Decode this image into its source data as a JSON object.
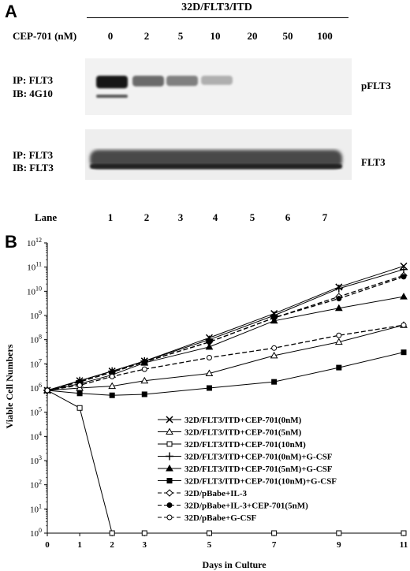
{
  "figure": {
    "panel_a": {
      "letter": "A",
      "header": "32D/FLT3/ITD",
      "conc_label": "CEP-701 (nM)",
      "concentrations": [
        "0",
        "2",
        "5",
        "10",
        "20",
        "50",
        "100"
      ],
      "blot_top": {
        "ip": "IP: FLT3",
        "ib": "IB: 4G10",
        "right_label": "pFLT3",
        "intensities": [
          1.0,
          0.6,
          0.5,
          0.28,
          0,
          0,
          0
        ]
      },
      "blot_bottom": {
        "ip": "IP: FLT3",
        "ib": "IB: FLT3",
        "right_label": "FLT3"
      },
      "lane_label": "Lane",
      "lanes": [
        "1",
        "2",
        "3",
        "4",
        "5",
        "6",
        "7"
      ]
    },
    "panel_b": {
      "letter": "B"
    }
  },
  "chart_data": {
    "type": "line",
    "xlabel": "Days in Culture",
    "ylabel": "Viable Cell Numbers",
    "x_ticks": [
      0,
      1,
      2,
      3,
      5,
      7,
      9,
      11
    ],
    "y_log": true,
    "y_tick_exponents": [
      0,
      1,
      2,
      3,
      4,
      5,
      6,
      7,
      8,
      9,
      10,
      11,
      12
    ],
    "y_tick_base": "10",
    "series": [
      {
        "name": "32D/FLT3/ITD+CEP-701(0nM)",
        "marker": "x",
        "dash": "solid",
        "x": [
          0,
          1,
          2,
          3,
          5,
          7,
          9,
          11
        ],
        "y": [
          800000.0,
          2000000.0,
          5000000.0,
          13000000.0,
          120000000.0,
          1200000000.0,
          15000000000.0,
          110000000000.0
        ]
      },
      {
        "name": "32D/FLT3/ITD+CEP-701(5nM)",
        "marker": "triangle-open",
        "dash": "solid",
        "x": [
          0,
          1,
          2,
          3,
          5,
          7,
          9,
          11
        ],
        "y": [
          800000.0,
          1000000.0,
          1200000.0,
          2000000.0,
          4000000.0,
          22000000.0,
          80000000.0,
          400000000.0
        ]
      },
      {
        "name": "32D/FLT3/ITD+CEP-701(10nM)",
        "marker": "square-open",
        "dash": "solid",
        "x": [
          0,
          1,
          2,
          3,
          5,
          7,
          9,
          11
        ],
        "y": [
          800000.0,
          150000.0,
          1,
          1,
          1,
          1,
          1,
          1
        ]
      },
      {
        "name": "32D/FLT3/ITD+CEP-701(0nM)+G-CSF",
        "marker": "plus",
        "dash": "solid",
        "x": [
          0,
          1,
          2,
          3,
          5,
          7,
          9,
          11
        ],
        "y": [
          800000.0,
          2000000.0,
          5000000.0,
          13000000.0,
          100000000.0,
          1000000000.0,
          13000000000.0,
          80000000000.0
        ]
      },
      {
        "name": "32D/FLT3/ITD+CEP-701(5nM)+G-CSF",
        "marker": "triangle-filled",
        "dash": "solid",
        "x": [
          0,
          1,
          2,
          3,
          5,
          7,
          9,
          11
        ],
        "y": [
          800000.0,
          1500000.0,
          3500000.0,
          11000000.0,
          50000000.0,
          600000000.0,
          2000000000.0,
          6000000000.0
        ]
      },
      {
        "name": "32D/FLT3/ITD+CEP-701(10nM)+G-CSF",
        "marker": "square-filled",
        "dash": "solid",
        "x": [
          0,
          1,
          2,
          3,
          5,
          7,
          9,
          11
        ],
        "y": [
          800000.0,
          600000.0,
          500000.0,
          550000.0,
          1000000.0,
          1800000.0,
          7000000.0,
          30000000.0
        ]
      },
      {
        "name": "32D/pBabe+IL-3",
        "marker": "diamond-open",
        "dash": "dashed",
        "x": [
          0,
          1,
          2,
          3,
          5,
          7,
          9,
          11
        ],
        "y": [
          800000.0,
          1800000.0,
          4500000.0,
          12000000.0,
          80000000.0,
          800000000.0,
          6000000000.0,
          45000000000.0
        ]
      },
      {
        "name": "32D/pBabe+IL-3+CEP-701(5nM)",
        "marker": "circle-filled",
        "dash": "dashed",
        "x": [
          0,
          1,
          2,
          3,
          5,
          7,
          9,
          11
        ],
        "y": [
          800000.0,
          1800000.0,
          4500000.0,
          12000000.0,
          80000000.0,
          800000000.0,
          5000000000.0,
          40000000000.0
        ]
      },
      {
        "name": "32D/pBabe+G-CSF",
        "marker": "circle-open",
        "dash": "dashed",
        "x": [
          0,
          1,
          2,
          3,
          5,
          7,
          9,
          11
        ],
        "y": [
          800000.0,
          1300000.0,
          3000000.0,
          6000000.0,
          18000000.0,
          45000000.0,
          150000000.0,
          400000000.0
        ]
      }
    ]
  }
}
